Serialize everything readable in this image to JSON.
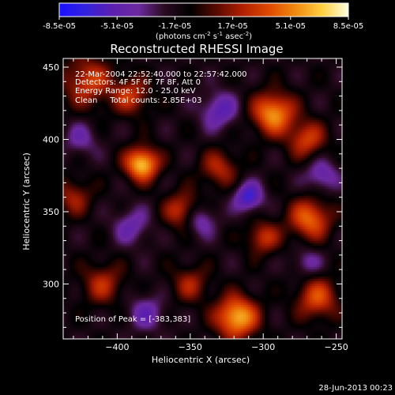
{
  "colorbar": {
    "ticks": [
      "-8.5e-05",
      "-5.1e-05",
      "-1.7e-05",
      "1.7e-05",
      "5.1e-05",
      "8.5e-05"
    ],
    "unit_label": "(photons cm",
    "unit_exp1": "-2",
    "unit_mid": " s",
    "unit_exp2": "-1",
    "unit_mid2": " asec",
    "unit_exp3": "-2",
    "unit_end": ")",
    "colors": [
      "#1a10ff",
      "#3322dd",
      "#5a1fb0",
      "#6e2aa0",
      "#2a0a20",
      "#000000",
      "#5a0a00",
      "#b22000",
      "#e04a00",
      "#f08a10",
      "#ffd040",
      "#ffffe0"
    ]
  },
  "annotations": {
    "line1": "22-Mar-2004 22:52:40.000 to 22:57:42.000",
    "line2": "Detectors: 4F 5F 6F 7F 8F, Att 0",
    "line3": "Energy Range: 12.0 - 25.0 keV",
    "line4": "Clean     Total counts: 2.85E+03",
    "peak": "Position of Peak = [-383,383]"
  },
  "footer_date": "28-Jun-2013 00:23",
  "chart_data": {
    "type": "heatmap",
    "title": "Reconstructed RHESSI Image",
    "xlabel": "Heliocentric X (arcsec)",
    "ylabel": "Heliocentric Y (arcsec)",
    "xlim": [
      -437,
      -246
    ],
    "ylim": [
      262,
      456
    ],
    "xticks": [
      -400,
      -350,
      -300,
      -250
    ],
    "yticks": [
      300,
      350,
      400,
      450
    ],
    "zlim": [
      -8.5e-05,
      8.5e-05
    ],
    "peak": [
      -383,
      383
    ],
    "sources": [
      {
        "x": -383,
        "y": 383,
        "sigma": 8,
        "amp": 1.0
      },
      {
        "x": -293,
        "y": 418,
        "sigma": 10,
        "amp": 0.85
      },
      {
        "x": -268,
        "y": 345,
        "sigma": 10,
        "amp": 0.7
      },
      {
        "x": -318,
        "y": 277,
        "sigma": 10,
        "amp": 0.95
      },
      {
        "x": -354,
        "y": 350,
        "sigma": 9,
        "amp": 0.65
      },
      {
        "x": -420,
        "y": 440,
        "sigma": 12,
        "amp": 0.55
      },
      {
        "x": -410,
        "y": 300,
        "sigma": 10,
        "amp": 0.45
      },
      {
        "x": -263,
        "y": 290,
        "sigma": 10,
        "amp": 0.6
      },
      {
        "x": -390,
        "y": 430,
        "sigma": 9,
        "amp": 0.5
      },
      {
        "x": -270,
        "y": 400,
        "sigma": 9,
        "amp": 0.55
      },
      {
        "x": -330,
        "y": 380,
        "sigma": 9,
        "amp": 0.45
      },
      {
        "x": -300,
        "y": 332,
        "sigma": 8,
        "amp": 0.5
      },
      {
        "x": -430,
        "y": 360,
        "sigma": 9,
        "amp": 0.4
      },
      {
        "x": -350,
        "y": 300,
        "sigma": 9,
        "amp": 0.4
      },
      {
        "x": -310,
        "y": 360,
        "sigma": 7,
        "amp": -0.6
      },
      {
        "x": -345,
        "y": 345,
        "sigma": 8,
        "amp": -0.55
      },
      {
        "x": -330,
        "y": 420,
        "sigma": 9,
        "amp": -0.45
      },
      {
        "x": -390,
        "y": 340,
        "sigma": 9,
        "amp": -0.35
      },
      {
        "x": -260,
        "y": 375,
        "sigma": 8,
        "amp": -0.4
      },
      {
        "x": -380,
        "y": 280,
        "sigma": 9,
        "amp": -0.35
      },
      {
        "x": -270,
        "y": 315,
        "sigma": 7,
        "amp": -0.3
      },
      {
        "x": -425,
        "y": 400,
        "sigma": 8,
        "amp": -0.3
      }
    ]
  }
}
